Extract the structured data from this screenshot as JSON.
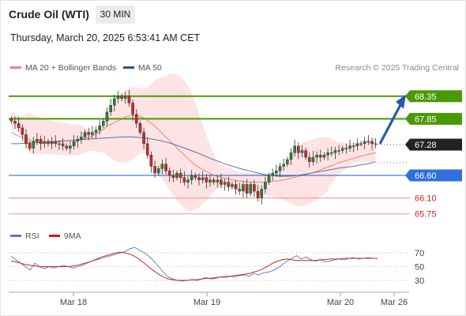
{
  "header": {
    "instrument": "Crude Oil (WTI)",
    "timeframe": "30 MIN",
    "datetime": "Thursday, March 20, 2025 6:53:41 AM CET"
  },
  "legend": {
    "ma20_label": "MA 20 + Bollinger Bands",
    "ma50_label": "MA 50",
    "rsi_label": "RSI",
    "rsi_ma_label": "9MA",
    "copyright": "Research © 2025 Trading Central"
  },
  "colors": {
    "resistance": "#4a9a06",
    "resistance_label_bg": "#4a9a06",
    "support": "#2255cc",
    "support_label_bg": "#2f6fe0",
    "support_weak": "#f4a0a0",
    "support_weak_text": "#cc2222",
    "last_price_bg": "#222222",
    "ma20": "#f08080",
    "ma50": "#5577aa",
    "bollinger_fill": "#fde0e0",
    "candle_up": "#2e7d32",
    "candle_down": "#c62828",
    "rsi": "#5577cc",
    "rsi_ma": "#cc2222",
    "arrow": "#2a5aa8"
  },
  "chart_data": [
    {
      "type": "candlestick",
      "title": "Crude Oil (WTI)",
      "timeframe": "30 MIN",
      "x_ticks": [
        "Mar 18",
        "Mar 19",
        "Mar 20",
        "Mar 26"
      ],
      "ylim": [
        65.5,
        68.8
      ],
      "price_levels": [
        {
          "value": 68.35,
          "label": "68.35",
          "kind": "resistance"
        },
        {
          "value": 67.85,
          "label": "67.85",
          "kind": "resistance"
        },
        {
          "value": 67.28,
          "label": "67.28",
          "kind": "last"
        },
        {
          "value": 66.6,
          "label": "66.60",
          "kind": "support"
        },
        {
          "value": 66.1,
          "label": "66.10",
          "kind": "support-weak"
        },
        {
          "value": 65.75,
          "label": "65.75",
          "kind": "support-weak"
        }
      ],
      "close": [
        67.8,
        67.75,
        67.65,
        67.5,
        67.3,
        67.2,
        67.35,
        67.4,
        67.3,
        67.35,
        67.3,
        67.35,
        67.3,
        67.3,
        67.25,
        67.2,
        67.25,
        67.35,
        67.4,
        67.45,
        67.55,
        67.5,
        67.55,
        67.6,
        67.7,
        67.8,
        68.0,
        68.15,
        68.3,
        68.35,
        68.3,
        68.35,
        68.2,
        67.95,
        67.75,
        67.55,
        67.3,
        67.05,
        66.8,
        66.65,
        66.75,
        66.85,
        66.7,
        66.6,
        66.55,
        66.65,
        66.55,
        66.45,
        66.5,
        66.6,
        66.55,
        66.5,
        66.55,
        66.45,
        66.5,
        66.45,
        66.5,
        66.4,
        66.45,
        66.35,
        66.4,
        66.3,
        66.25,
        66.4,
        66.2,
        66.4,
        66.25,
        66.1,
        66.3,
        66.45,
        66.6,
        66.65,
        66.7,
        66.8,
        66.85,
        66.95,
        67.1,
        67.25,
        67.1,
        67.15,
        67.0,
        66.9,
        67.0,
        67.05,
        67.0,
        67.05,
        67.1,
        67.1,
        67.15,
        67.15,
        67.2,
        67.2,
        67.25,
        67.25,
        67.3,
        67.3,
        67.35,
        67.35,
        67.3,
        67.3
      ],
      "ma20": [
        67.55,
        67.5,
        67.45,
        67.42,
        67.38,
        67.36,
        67.34,
        67.33,
        67.33,
        67.33,
        67.34,
        67.35,
        67.36,
        67.37,
        67.38,
        67.4,
        67.42,
        67.45,
        67.5,
        67.55,
        67.62,
        67.7,
        67.75,
        67.8,
        67.85,
        67.9,
        67.92,
        67.92,
        67.9,
        67.85,
        67.78,
        67.7,
        67.6,
        67.5,
        67.4,
        67.3,
        67.2,
        67.1,
        67.0,
        66.9,
        66.82,
        66.76,
        66.7,
        66.65,
        66.6,
        66.57,
        66.54,
        66.52,
        66.5,
        66.48,
        66.47,
        66.46,
        66.45,
        66.45,
        66.45,
        66.45,
        66.46,
        66.47,
        66.48,
        66.5,
        66.52,
        66.55,
        66.57,
        66.6,
        66.62,
        66.65,
        66.68,
        66.72,
        66.76,
        66.8,
        66.84,
        66.88,
        66.91,
        66.94,
        66.97,
        67.0,
        67.03,
        67.06,
        67.08,
        67.1
      ],
      "ma50": [
        67.3,
        67.3,
        67.31,
        67.32,
        67.33,
        67.34,
        67.35,
        67.36,
        67.37,
        67.38,
        67.4,
        67.41,
        67.42,
        67.43,
        67.44,
        67.45,
        67.45,
        67.44,
        67.43,
        67.4,
        67.37,
        67.33,
        67.28,
        67.22,
        67.16,
        67.1,
        67.03,
        66.96,
        66.9,
        66.84,
        66.79,
        66.74,
        66.7,
        66.66,
        66.62,
        66.6,
        66.58,
        66.58,
        66.59,
        66.61,
        66.64,
        66.67,
        66.7,
        66.73,
        66.76,
        66.78,
        66.8,
        66.83,
        66.86,
        66.9
      ]
    },
    {
      "type": "line",
      "title": "RSI",
      "series": [
        {
          "name": "RSI"
        },
        {
          "name": "9MA"
        }
      ],
      "y_ticks": [
        70,
        50,
        30
      ],
      "ylim": [
        15,
        85
      ],
      "rsi": [
        65,
        60,
        55,
        50,
        45,
        55,
        50,
        47,
        50,
        48,
        50,
        52,
        50,
        48,
        50,
        52,
        55,
        58,
        60,
        62,
        64,
        66,
        68,
        70,
        72,
        76,
        78,
        74,
        70,
        65,
        58,
        50,
        42,
        35,
        32,
        30,
        29,
        30,
        31,
        30,
        32,
        34,
        32,
        33,
        35,
        34,
        36,
        35,
        37,
        38,
        36,
        40,
        38,
        41,
        42,
        44,
        48,
        53,
        58,
        62,
        66,
        61,
        64,
        60,
        58,
        60,
        57,
        58,
        60,
        61,
        60,
        62,
        63,
        61,
        62,
        63,
        62,
        62
      ],
      "rsi_ma": [
        58,
        57,
        55,
        53,
        52,
        51,
        50,
        50,
        50,
        50,
        50,
        50,
        50,
        51,
        52,
        54,
        56,
        58,
        61,
        64,
        66,
        68,
        70,
        71,
        70,
        68,
        65,
        60,
        55,
        49,
        44,
        39,
        35,
        32,
        31,
        30,
        30,
        30,
        31,
        31,
        32,
        33,
        33,
        34,
        35,
        36,
        36,
        37,
        38,
        39,
        40,
        42,
        44,
        47,
        51,
        55,
        58,
        60,
        61,
        60,
        59,
        59,
        59,
        59,
        59,
        60,
        60,
        61,
        61,
        61,
        62,
        62,
        62,
        62,
        62,
        62,
        62,
        62
      ]
    }
  ]
}
